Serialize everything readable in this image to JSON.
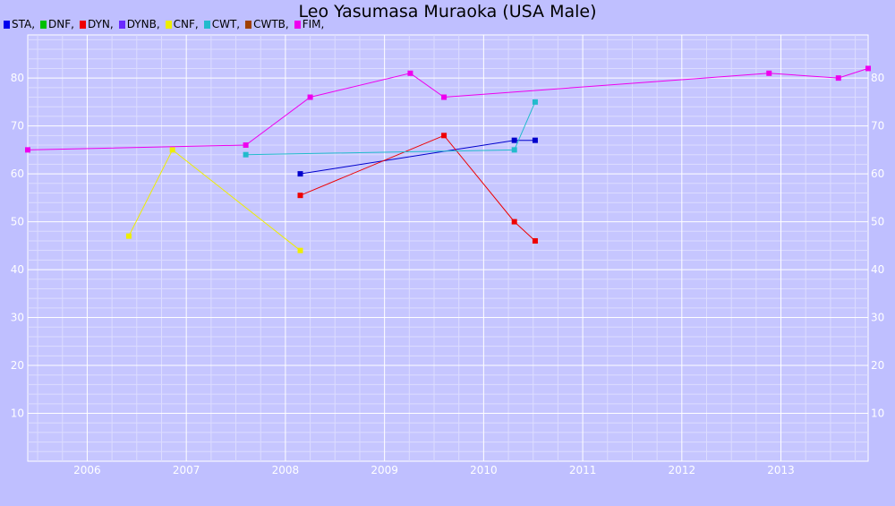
{
  "chart_data": {
    "type": "line",
    "title": "Leo Yasumasa Muraoka (USA Male)",
    "xlabel": "",
    "ylabel": "",
    "xlim": [
      2005.4,
      2013.88
    ],
    "ylim": [
      0,
      89
    ],
    "x_ticks": [
      2006,
      2007,
      2008,
      2009,
      2010,
      2011,
      2012,
      2013
    ],
    "y_ticks": [
      10,
      20,
      30,
      40,
      50,
      60,
      70,
      80
    ],
    "grid": true,
    "legend_position": "top-left",
    "legend": [
      {
        "label": "STA,",
        "color": "#0000ee"
      },
      {
        "label": "DNF,",
        "color": "#00c000"
      },
      {
        "label": "DYN,",
        "color": "#ee0000"
      },
      {
        "label": "DYNB,",
        "color": "#6a2aff"
      },
      {
        "label": "CNF,",
        "color": "#eeee00"
      },
      {
        "label": "CWT,",
        "color": "#22bbcc"
      },
      {
        "label": "CWTB,",
        "color": "#a04000"
      },
      {
        "label": "FIM,",
        "color": "#ee00ee"
      }
    ],
    "series": [
      {
        "name": "STA",
        "color": "#0000cc",
        "points": [
          [
            2008.15,
            60
          ],
          [
            2010.31,
            67
          ],
          [
            2010.52,
            67
          ]
        ]
      },
      {
        "name": "DYN",
        "color": "#ee0000",
        "points": [
          [
            2008.15,
            55.5
          ],
          [
            2009.6,
            68
          ],
          [
            2010.31,
            50
          ],
          [
            2010.52,
            46
          ]
        ]
      },
      {
        "name": "CNF",
        "color": "#eeee00",
        "points": [
          [
            2006.42,
            47
          ],
          [
            2006.86,
            65
          ],
          [
            2008.15,
            44
          ]
        ]
      },
      {
        "name": "CWT",
        "color": "#22bbcc",
        "points": [
          [
            2007.6,
            64
          ],
          [
            2010.31,
            65
          ],
          [
            2010.52,
            75
          ]
        ]
      },
      {
        "name": "FIM",
        "color": "#ee00ee",
        "points": [
          [
            2005.4,
            65
          ],
          [
            2007.6,
            66
          ],
          [
            2008.25,
            76
          ],
          [
            2009.26,
            81
          ],
          [
            2009.6,
            76
          ],
          [
            2012.88,
            81
          ],
          [
            2013.58,
            80
          ],
          [
            2013.88,
            82
          ]
        ]
      }
    ]
  }
}
